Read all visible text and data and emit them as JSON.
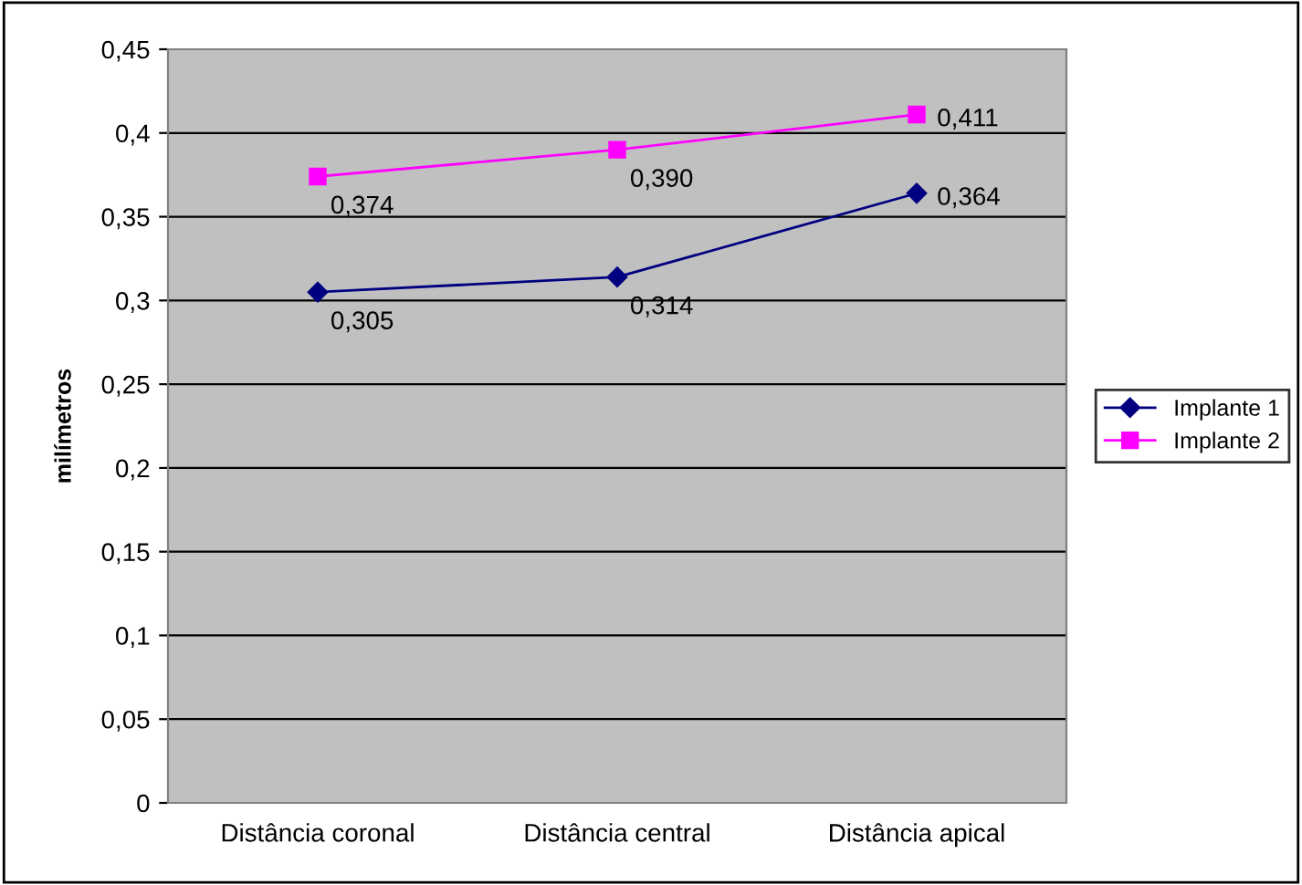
{
  "chart_data": {
    "type": "line",
    "ylabel": "milímetros",
    "categories": [
      "Distância coronal",
      "Distância central",
      "Distância apical"
    ],
    "series": [
      {
        "name": "Implante 1",
        "color": "#000080",
        "marker": "diamond",
        "values": [
          0.305,
          0.314,
          0.364
        ],
        "value_labels": [
          "0,305",
          "0,314",
          "0,364"
        ]
      },
      {
        "name": "Implante 2",
        "color": "#ff00ff",
        "marker": "square",
        "values": [
          0.374,
          0.39,
          0.411
        ],
        "value_labels": [
          "0,374",
          "0,390",
          "0,411"
        ]
      }
    ],
    "ylim": [
      0,
      0.45
    ],
    "yticks": [
      {
        "value": 0,
        "label": "0"
      },
      {
        "value": 0.05,
        "label": "0,05"
      },
      {
        "value": 0.1,
        "label": "0,1"
      },
      {
        "value": 0.15,
        "label": "0,15"
      },
      {
        "value": 0.2,
        "label": "0,2"
      },
      {
        "value": 0.25,
        "label": "0,25"
      },
      {
        "value": 0.3,
        "label": "0,3"
      },
      {
        "value": 0.35,
        "label": "0,35"
      },
      {
        "value": 0.4,
        "label": "0,4"
      },
      {
        "value": 0.45,
        "label": "0,45"
      }
    ],
    "grid": "y",
    "legend": "right",
    "line_style": "solid"
  }
}
